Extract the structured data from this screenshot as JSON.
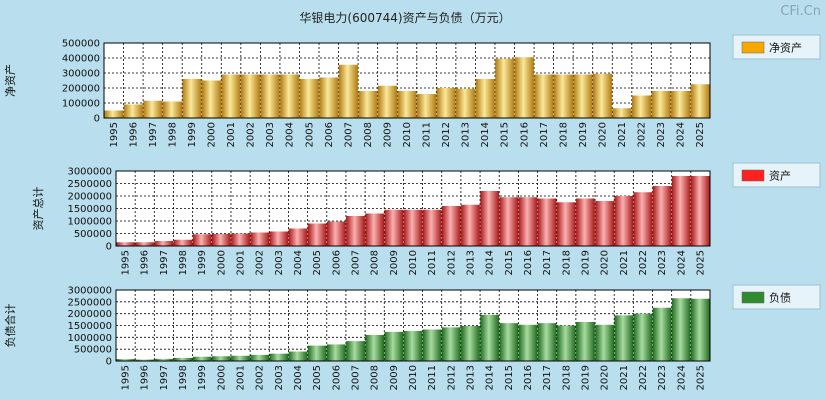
{
  "title": "华银电力(600744)资产与负债（万元）",
  "watermark": "CFi.Cn",
  "chart_data": [
    {
      "type": "bar",
      "title": "华银电力(600744)资产与负债（万元）",
      "ylabel": "净资产",
      "legend": "净资产",
      "legend_color": "#f5a800",
      "bar_light": "#fbe89a",
      "bar_dark": "#b07a10",
      "ylim": [
        0,
        500000
      ],
      "ticks": [
        0,
        100000,
        200000,
        300000,
        400000,
        500000
      ],
      "categories": [
        "1995",
        "1996",
        "1997",
        "1998",
        "1999",
        "2000",
        "2001",
        "2002",
        "2003",
        "2004",
        "2005",
        "2006",
        "2007",
        "2008",
        "2009",
        "2010",
        "2011",
        "2012",
        "2013",
        "2014",
        "2015",
        "2016",
        "2017",
        "2018",
        "2019",
        "2020",
        "2021",
        "2022",
        "2023",
        "2024",
        "2025"
      ],
      "values": [
        50000,
        90000,
        115000,
        110000,
        260000,
        250000,
        290000,
        290000,
        290000,
        290000,
        260000,
        270000,
        355000,
        180000,
        215000,
        180000,
        160000,
        200000,
        195000,
        260000,
        395000,
        405000,
        290000,
        290000,
        290000,
        295000,
        65000,
        150000,
        180000,
        180000,
        225000
      ]
    },
    {
      "type": "bar",
      "ylabel": "资产总计",
      "legend": "资产",
      "legend_color": "#ff2020",
      "bar_light": "#fbb0b0",
      "bar_dark": "#a81818",
      "ylim": [
        0,
        3000000
      ],
      "ticks": [
        0,
        500000,
        1000000,
        1500000,
        2000000,
        2500000,
        3000000
      ],
      "categories": [
        "1995",
        "1996",
        "1997",
        "1998",
        "1999",
        "2000",
        "2001",
        "2002",
        "2003",
        "2004",
        "2005",
        "2006",
        "2007",
        "2008",
        "2009",
        "2010",
        "2011",
        "2012",
        "2013",
        "2014",
        "2015",
        "2016",
        "2017",
        "2018",
        "2019",
        "2020",
        "2021",
        "2022",
        "2023",
        "2024",
        "2025"
      ],
      "values": [
        150000,
        150000,
        200000,
        250000,
        470000,
        480000,
        500000,
        540000,
        580000,
        700000,
        900000,
        980000,
        1200000,
        1300000,
        1450000,
        1450000,
        1450000,
        1600000,
        1650000,
        2200000,
        1950000,
        1950000,
        1900000,
        1750000,
        1900000,
        1800000,
        2000000,
        2150000,
        2400000,
        2800000,
        2800000
      ]
    },
    {
      "type": "bar",
      "ylabel": "负债合计",
      "legend": "负债",
      "legend_color": "#2e8b2e",
      "bar_light": "#a8dca0",
      "bar_dark": "#1f6a1f",
      "ylim": [
        0,
        3000000
      ],
      "ticks": [
        0,
        500000,
        1000000,
        1500000,
        2000000,
        2500000,
        3000000
      ],
      "categories": [
        "1995",
        "1996",
        "1997",
        "1998",
        "1999",
        "2000",
        "2001",
        "2002",
        "2003",
        "2004",
        "2005",
        "2006",
        "2007",
        "2008",
        "2009",
        "2010",
        "2011",
        "2012",
        "2013",
        "2014",
        "2015",
        "2016",
        "2017",
        "2018",
        "2019",
        "2020",
        "2021",
        "2022",
        "2023",
        "2024",
        "2025"
      ],
      "values": [
        80000,
        60000,
        90000,
        130000,
        180000,
        200000,
        220000,
        260000,
        310000,
        400000,
        650000,
        700000,
        840000,
        1100000,
        1230000,
        1270000,
        1330000,
        1420000,
        1480000,
        1950000,
        1600000,
        1530000,
        1600000,
        1500000,
        1650000,
        1530000,
        1930000,
        2000000,
        2250000,
        2650000,
        2630000
      ]
    }
  ]
}
